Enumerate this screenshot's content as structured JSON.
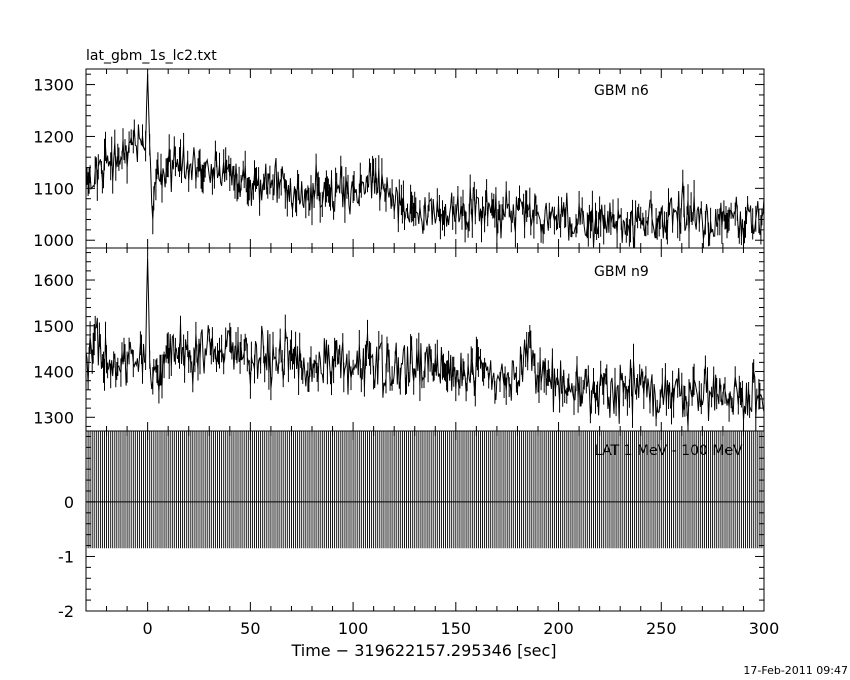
{
  "file_title": "lat_gbm_1s_lc2.txt",
  "timestamp": "17-Feb-2011 09:47",
  "colors": {
    "background": "#ffffff",
    "ink": "#000000"
  },
  "chart_data": [
    {
      "type": "line",
      "panel_label": "GBM n6",
      "xlim": [
        -30,
        300
      ],
      "ylim": [
        985,
        1330
      ],
      "y_ticks": [
        1000,
        1100,
        1200,
        1300
      ],
      "series": [
        {
          "x": [
            -30,
            -25,
            -20,
            -15,
            -10,
            -5,
            -1,
            0,
            1,
            2,
            5,
            10,
            20,
            30,
            40,
            50,
            60,
            70,
            80,
            90,
            100,
            110,
            120,
            130,
            140,
            150,
            160,
            170,
            180,
            190,
            200,
            210,
            220,
            230,
            240,
            250,
            255,
            260,
            270,
            280,
            290,
            300
          ],
          "y": [
            1130,
            1110,
            1150,
            1160,
            1170,
            1180,
            1200,
            1320,
            1180,
            1080,
            1120,
            1150,
            1140,
            1130,
            1120,
            1110,
            1110,
            1100,
            1100,
            1100,
            1090,
            1120,
            1080,
            1060,
            1060,
            1050,
            1055,
            1050,
            1055,
            1045,
            1040,
            1040,
            1040,
            1030,
            1040,
            1030,
            1050,
            1060,
            1040,
            1035,
            1040,
            1040
          ]
        }
      ]
    },
    {
      "type": "line",
      "panel_label": "GBM n9",
      "xlim": [
        -30,
        300
      ],
      "ylim": [
        1270,
        1670
      ],
      "y_ticks": [
        1300,
        1400,
        1500,
        1600
      ],
      "series": [
        {
          "x": [
            -30,
            -25,
            -20,
            -15,
            -10,
            -5,
            -1,
            0,
            1,
            2,
            5,
            10,
            20,
            30,
            40,
            50,
            60,
            70,
            80,
            90,
            100,
            110,
            120,
            130,
            140,
            150,
            160,
            170,
            180,
            185,
            190,
            200,
            210,
            220,
            230,
            240,
            250,
            260,
            270,
            280,
            290,
            300
          ],
          "y": [
            1430,
            1480,
            1420,
            1410,
            1420,
            1430,
            1460,
            1650,
            1440,
            1380,
            1410,
            1450,
            1440,
            1450,
            1450,
            1440,
            1430,
            1430,
            1420,
            1420,
            1410,
            1420,
            1400,
            1410,
            1410,
            1390,
            1400,
            1390,
            1400,
            1460,
            1400,
            1370,
            1360,
            1370,
            1360,
            1370,
            1350,
            1350,
            1340,
            1350,
            1340,
            1340
          ]
        }
      ]
    },
    {
      "type": "bar",
      "panel_label": "LAT 1 MeV - 100 MeV",
      "xlim": [
        -30,
        300
      ],
      "ylim": [
        -2,
        1.3
      ],
      "y_ticks": [
        -2,
        -1,
        0
      ],
      "bar_range": [
        -0.85,
        1.3
      ],
      "x_ticks": [
        0,
        50,
        100,
        150,
        200,
        250,
        300
      ],
      "xlabel": "Time − 319622157.295346 [sec]"
    }
  ]
}
